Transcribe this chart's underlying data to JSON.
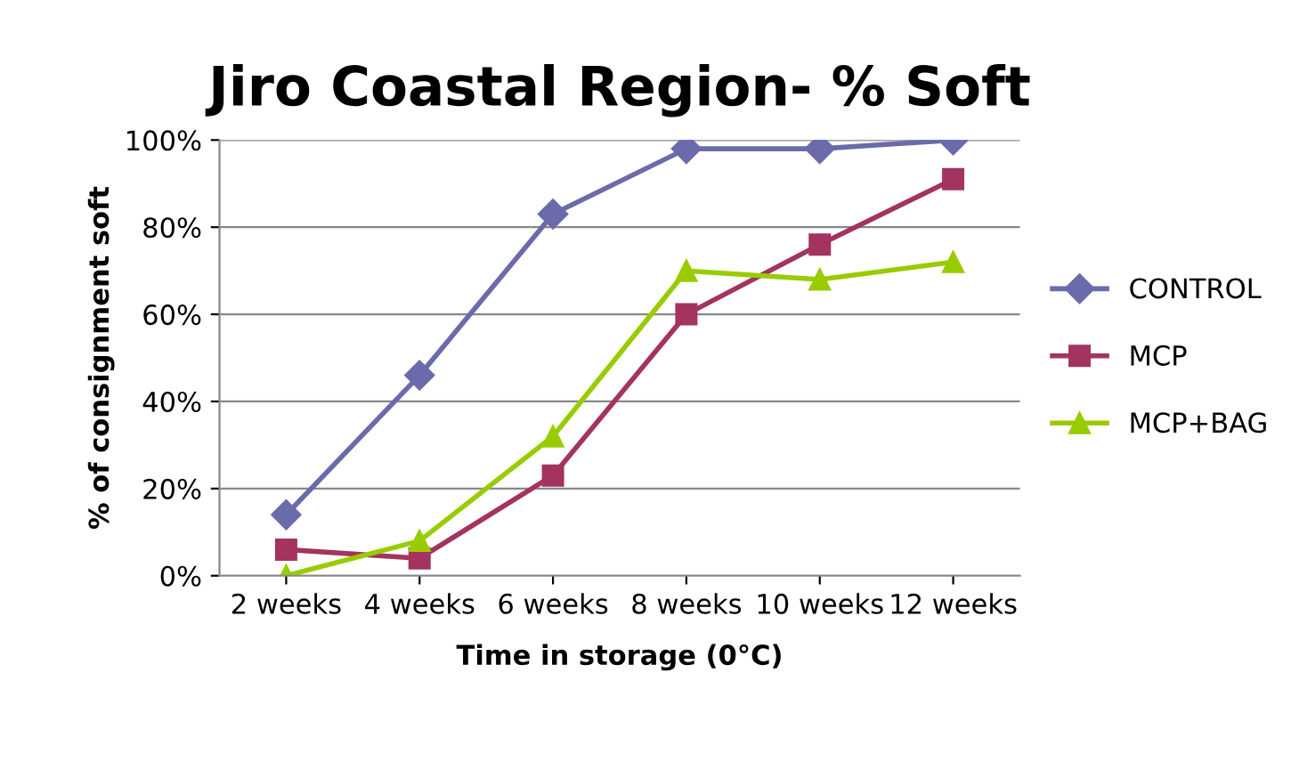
{
  "chart_data": {
    "type": "line",
    "title": "Jiro Coastal Region- % Soft",
    "xlabel": "Time in storage (0°C)",
    "ylabel": "% of consignment soft",
    "categories": [
      "2 weeks",
      "4 weeks",
      "6 weeks",
      "8 weeks",
      "10 weeks",
      "12 weeks"
    ],
    "series": [
      {
        "name": "CONTROL",
        "color": "#6b6bab",
        "marker": "diamond",
        "values": [
          14,
          46,
          83,
          98,
          98,
          100
        ]
      },
      {
        "name": "MCP",
        "color": "#a3335f",
        "marker": "square",
        "values": [
          6,
          4,
          23,
          60,
          76,
          91
        ]
      },
      {
        "name": "MCP+BAG",
        "color": "#99cc00",
        "marker": "triangle",
        "values": [
          0,
          8,
          32,
          70,
          68,
          72
        ]
      }
    ],
    "ylim": [
      0,
      100
    ],
    "yticks": [
      {
        "value": 0,
        "label": "0%"
      },
      {
        "value": 20,
        "label": "20%"
      },
      {
        "value": 40,
        "label": "40%"
      },
      {
        "value": 60,
        "label": "60%"
      },
      {
        "value": 80,
        "label": "80%"
      },
      {
        "value": 100,
        "label": "100%"
      }
    ],
    "grid": "y",
    "legend": "right"
  }
}
